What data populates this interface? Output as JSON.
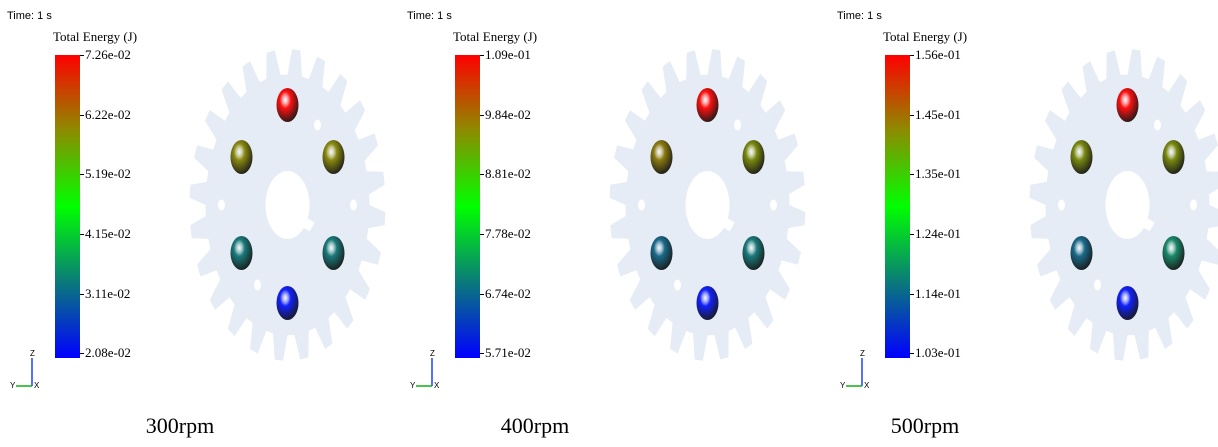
{
  "panels": [
    {
      "time": "Time: 1 s",
      "legend_title": "Total Energy (J)",
      "ticks": [
        "7.26e-02",
        "6.22e-02",
        "5.19e-02",
        "4.15e-02",
        "3.11e-02",
        "2.08e-02"
      ],
      "caption": "300rpm",
      "ball_colors": {
        "top": "#ff1010",
        "upper_left": "#8a8a10",
        "upper_right": "#8a8a10",
        "lower_left": "#1a7a7a",
        "lower_right": "#1a7a7a",
        "bottom": "#1020ff"
      }
    },
    {
      "time": "Time: 1 s",
      "legend_title": "Total Energy (J)",
      "ticks": [
        "1.09e-01",
        "9.84e-02",
        "8.81e-02",
        "7.78e-02",
        "6.74e-02",
        "5.71e-02"
      ],
      "caption": "400rpm",
      "ball_colors": {
        "top": "#ff1010",
        "upper_left": "#8a7a10",
        "upper_right": "#7a8a10",
        "lower_left": "#1a6a8a",
        "lower_right": "#1a7a7a",
        "bottom": "#1020ff"
      }
    },
    {
      "time": "Time: 1 s",
      "legend_title": "Total Energy (J)",
      "ticks": [
        "1.56e-01",
        "1.45e-01",
        "1.35e-01",
        "1.24e-01",
        "1.14e-01",
        "1.03e-01"
      ],
      "caption": "500rpm",
      "ball_colors": {
        "top": "#ff1010",
        "upper_left": "#7a8a10",
        "upper_right": "#7a8a10",
        "lower_left": "#1a6a8a",
        "lower_right": "#1a8a6a",
        "bottom": "#1020ff"
      }
    }
  ],
  "triad": {
    "up_axis": "Z",
    "left_axis": "Y",
    "origin_axis": "X"
  },
  "colors": {
    "gear_fill": "#e6ecf5",
    "axis_z": "#2040ff",
    "axis_y": "#10b010"
  }
}
